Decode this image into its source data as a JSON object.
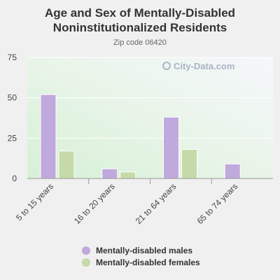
{
  "chart_data": {
    "type": "bar",
    "title": "Age and Sex of Mentally-Disabled Noninstitutionalized Residents",
    "subtitle": "Zip code 06420",
    "categories": [
      "5 to 15 years",
      "16 to 20 years",
      "21 to 64 years",
      "65 to 74 years"
    ],
    "series": [
      {
        "name": "Mentally-disabled males",
        "values": [
          52,
          6,
          38,
          9
        ],
        "color": "#c0a9dc"
      },
      {
        "name": "Mentally-disabled females",
        "values": [
          17,
          4,
          18,
          0
        ],
        "color": "#c6d9a8"
      }
    ],
    "yticks": [
      0,
      25,
      50,
      75
    ],
    "ylim": [
      0,
      75
    ],
    "grid": true,
    "legend_position": "bottom"
  },
  "watermark": "City-Data.com"
}
